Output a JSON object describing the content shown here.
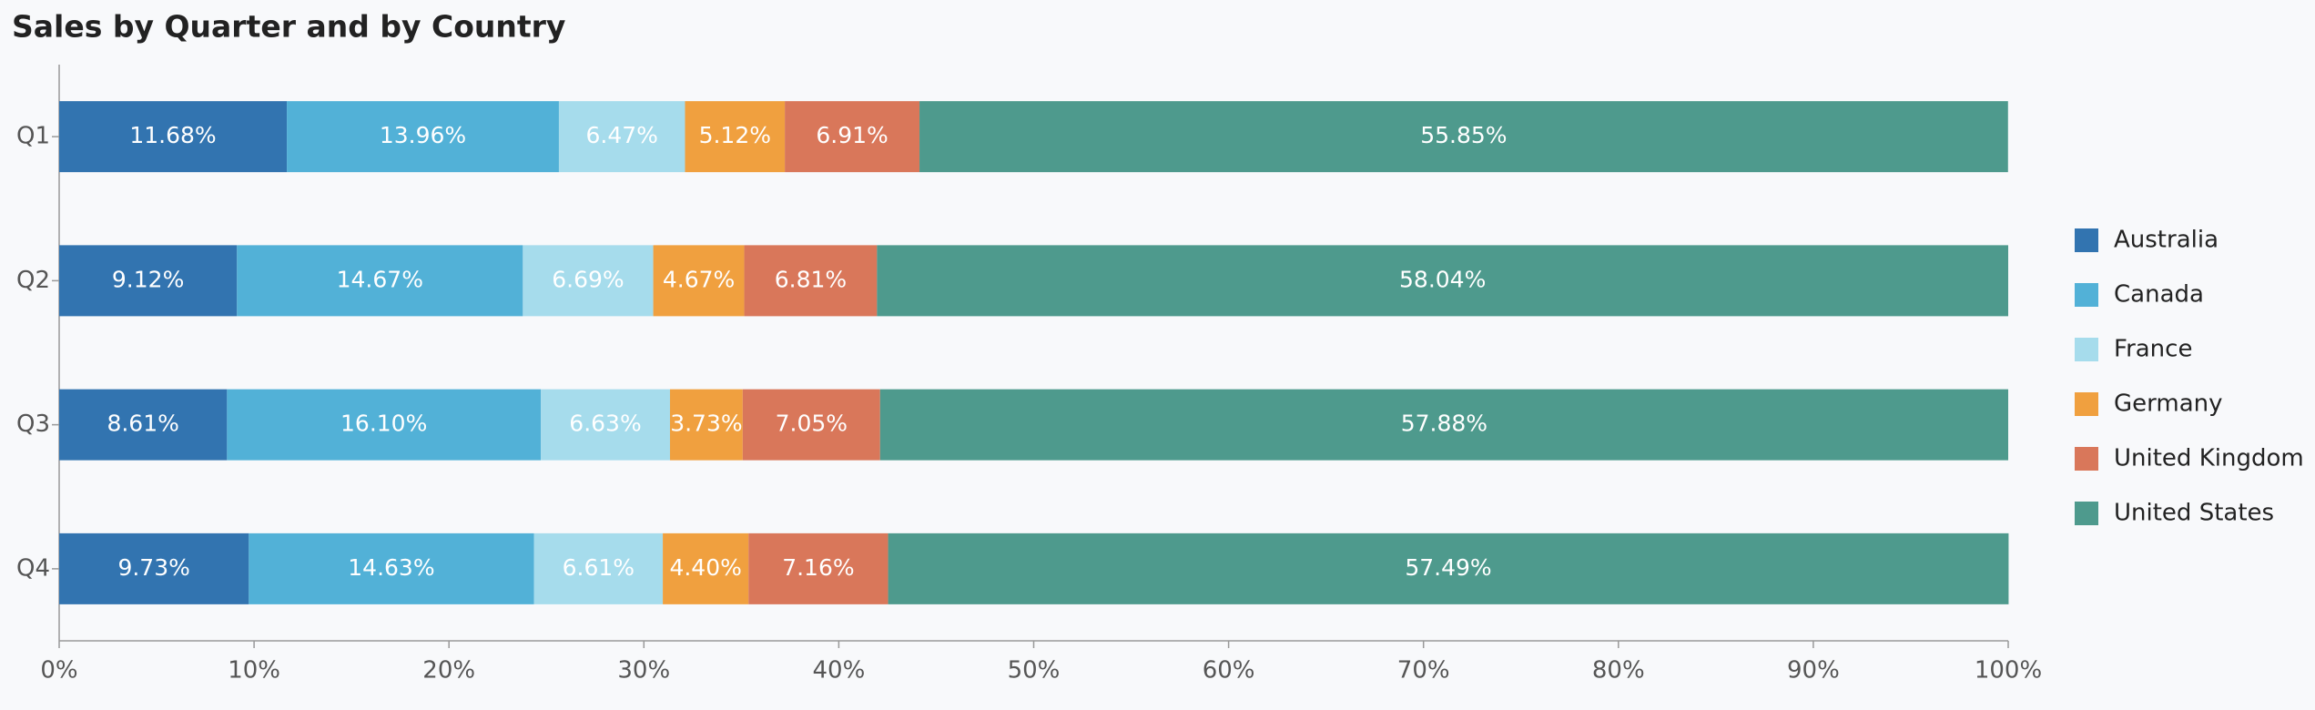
{
  "chart_data": {
    "type": "bar",
    "orientation": "horizontal",
    "stacked": true,
    "title": "Sales by Quarter and by Country",
    "categories": [
      "Q1",
      "Q2",
      "Q3",
      "Q4"
    ],
    "series": [
      {
        "name": "Australia",
        "color": "#3274b0",
        "values": [
          11.68,
          9.12,
          8.61,
          9.73
        ],
        "value_labels": [
          "11.68%",
          "9.12%",
          "8.61%",
          "9.73%"
        ]
      },
      {
        "name": "Canada",
        "color": "#52b1d7",
        "values": [
          13.96,
          14.67,
          16.1,
          14.63
        ],
        "value_labels": [
          "13.96%",
          "14.67%",
          "16.10%",
          "14.63%"
        ]
      },
      {
        "name": "France",
        "color": "#a6dcec",
        "values": [
          6.47,
          6.69,
          6.63,
          6.61
        ],
        "value_labels": [
          "6.47%",
          "6.69%",
          "6.63%",
          "6.61%"
        ]
      },
      {
        "name": "Germany",
        "color": "#f0a03f",
        "values": [
          5.12,
          4.67,
          3.73,
          4.4
        ],
        "value_labels": [
          "5.12%",
          "4.67%",
          "3.73%",
          "4.40%"
        ]
      },
      {
        "name": "United Kingdom",
        "color": "#d9775a",
        "values": [
          6.91,
          6.81,
          7.05,
          7.16
        ],
        "value_labels": [
          "6.91%",
          "6.81%",
          "7.05%",
          "7.16%"
        ]
      },
      {
        "name": "United States",
        "color": "#4e9a8d",
        "values": [
          55.85,
          58.04,
          57.88,
          57.49
        ],
        "value_labels": [
          "55.85%",
          "58.04%",
          "57.88%",
          "57.49%"
        ]
      }
    ],
    "xlim": [
      0,
      100
    ],
    "xticks": [
      {
        "value": 0,
        "label": "0%"
      },
      {
        "value": 10,
        "label": "10%"
      },
      {
        "value": 20,
        "label": "20%"
      },
      {
        "value": 30,
        "label": "30%"
      },
      {
        "value": 40,
        "label": "40%"
      },
      {
        "value": 50,
        "label": "50%"
      },
      {
        "value": 60,
        "label": "60%"
      },
      {
        "value": 70,
        "label": "70%"
      },
      {
        "value": 80,
        "label": "80%"
      },
      {
        "value": 90,
        "label": "90%"
      },
      {
        "value": 100,
        "label": "100%"
      }
    ],
    "legend": "right"
  }
}
